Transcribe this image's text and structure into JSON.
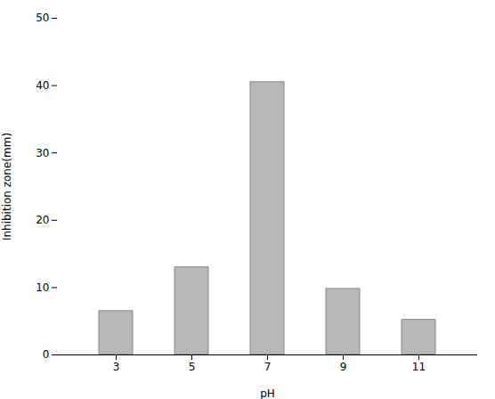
{
  "chart_data": {
    "type": "bar",
    "categories": [
      "3",
      "5",
      "7",
      "9",
      "11"
    ],
    "values": [
      6.5,
      13.0,
      40.5,
      9.8,
      5.2
    ],
    "color": "#b8b8b8",
    "xlabel": "pH",
    "ylabel": "Inhibition zone(mm)",
    "ylim": [
      0,
      50
    ],
    "yticks": [
      0,
      10,
      20,
      30,
      40,
      50
    ],
    "grid": false
  }
}
